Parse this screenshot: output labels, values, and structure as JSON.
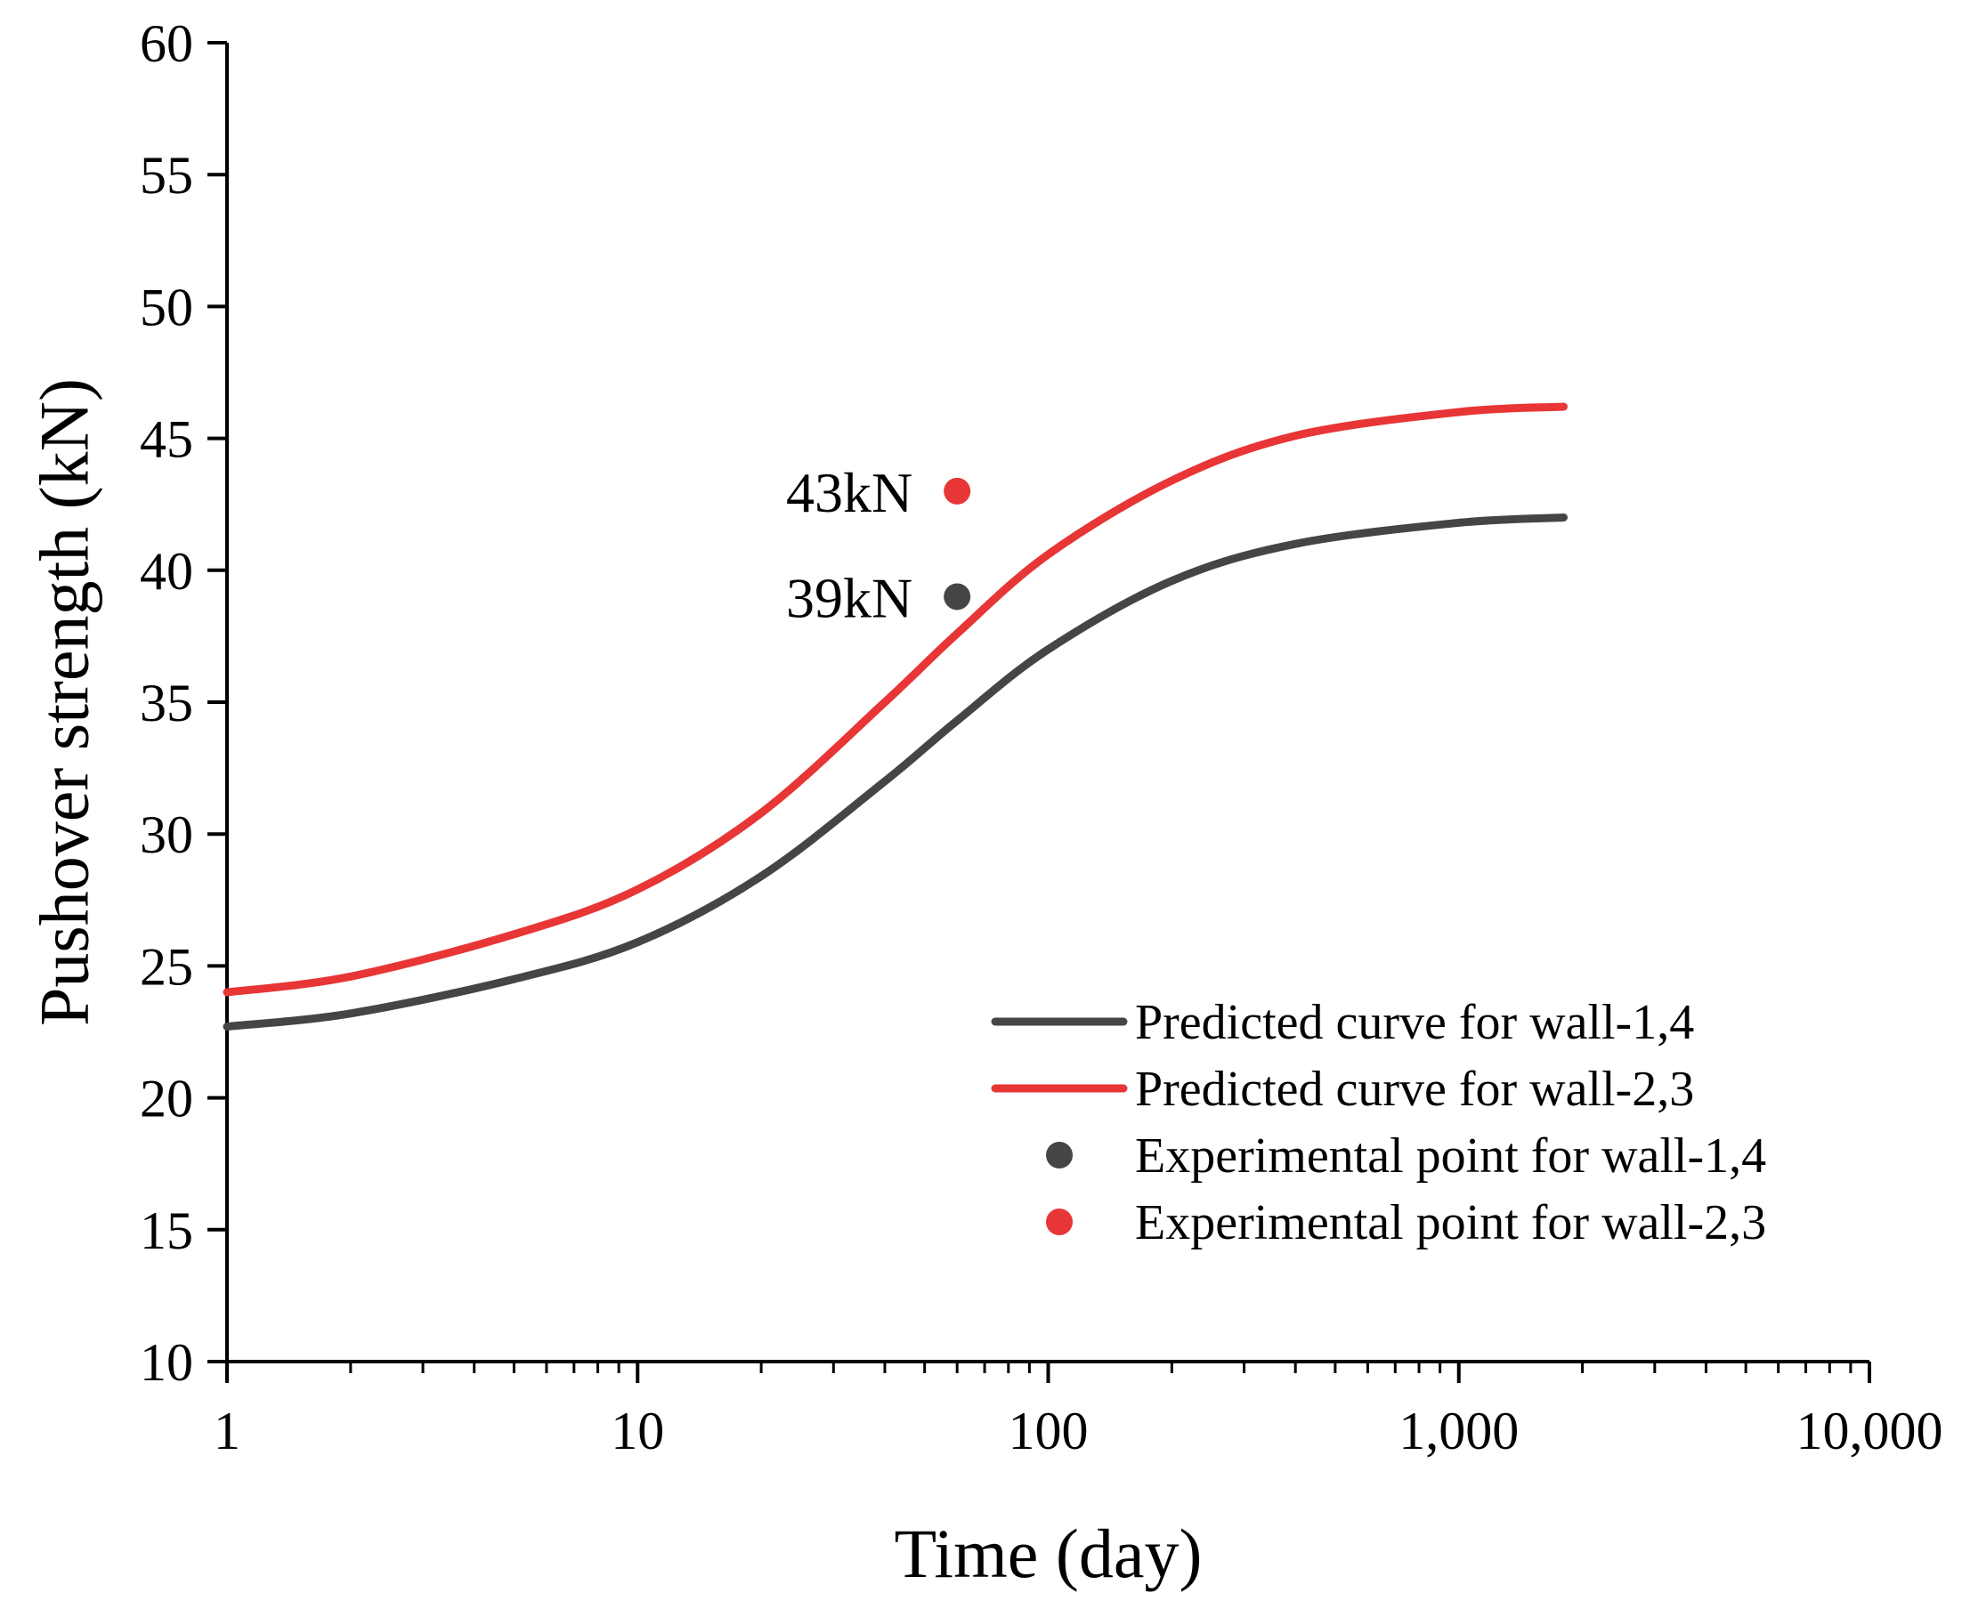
{
  "chart_data": {
    "type": "line",
    "title": "",
    "xlabel": "Time (day)",
    "ylabel": "Pushover strength (kN)",
    "xscale": "log",
    "xlim": [
      1,
      10000
    ],
    "ylim": [
      10,
      60
    ],
    "xticks": [
      1,
      10,
      100,
      1000,
      10000
    ],
    "xtick_labels": [
      "1",
      "10",
      "100",
      "1,000",
      "10,000"
    ],
    "yticks": [
      10,
      15,
      20,
      25,
      30,
      35,
      40,
      45,
      50,
      55,
      60
    ],
    "ytick_labels": [
      "10",
      "15",
      "20",
      "25",
      "30",
      "35",
      "40",
      "45",
      "50",
      "55",
      "60"
    ],
    "grid": false,
    "legend_position": "bottom-right",
    "series": [
      {
        "name": "Predicted curve for wall-1,4",
        "kind": "line",
        "color": "#454545",
        "x": [
          1,
          2,
          5,
          10,
          20,
          40,
          60,
          100,
          200,
          400,
          1000,
          1800
        ],
        "y": [
          22.7,
          23.2,
          24.5,
          25.9,
          28.4,
          32.0,
          34.3,
          37.0,
          39.6,
          41.0,
          41.8,
          42.0
        ]
      },
      {
        "name": "Predicted curve for wall-2,3",
        "kind": "line",
        "color": "#e83535",
        "x": [
          1,
          2,
          5,
          10,
          20,
          40,
          60,
          100,
          200,
          400,
          1000,
          1800
        ],
        "y": [
          24.0,
          24.6,
          26.2,
          27.9,
          30.8,
          35.0,
          37.6,
          40.6,
          43.4,
          45.1,
          46.0,
          46.2
        ]
      },
      {
        "name": "Experimental point for wall-1,4",
        "kind": "scatter",
        "color": "#454545",
        "x": [
          60
        ],
        "y": [
          39
        ]
      },
      {
        "name": "Experimental point for wall-2,3",
        "kind": "scatter",
        "color": "#e83535",
        "x": [
          60
        ],
        "y": [
          43
        ]
      }
    ],
    "annotations": [
      {
        "text": "43kN",
        "x": 60,
        "y": 43
      },
      {
        "text": "39kN",
        "x": 60,
        "y": 39
      }
    ]
  }
}
